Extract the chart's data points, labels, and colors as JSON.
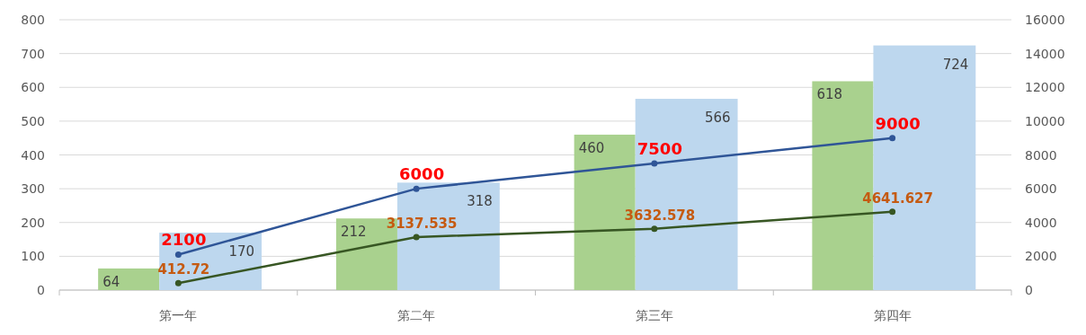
{
  "chart_data": {
    "type": "bar",
    "categories": [
      "第一年",
      "第二年",
      "第三年",
      "第四年"
    ],
    "series": [
      {
        "color": "#a9d18e",
        "values": [
          64,
          212,
          460,
          618
        ]
      },
      {
        "color": "#bdd7ee",
        "values": [
          170,
          318,
          566,
          724
        ]
      },
      {
        "type": "line",
        "axis": "y2",
        "color": "#2f5597",
        "values": [
          2100,
          6000,
          7500,
          9000
        ]
      },
      {
        "type": "line",
        "axis": "y2",
        "color": "#375623",
        "values": [
          412.72,
          3137.535,
          3632.578,
          4641.627
        ]
      }
    ],
    "ylim": [
      0,
      800
    ],
    "yticks": [
      0,
      100,
      200,
      300,
      400,
      500,
      600,
      700,
      800
    ],
    "y2lim": [
      0,
      16000
    ],
    "y2ticks": [
      0,
      2000,
      4000,
      6000,
      8000,
      10000,
      12000,
      14000,
      16000
    ],
    "data_labels": true,
    "grid": "y",
    "marker": "circle"
  }
}
